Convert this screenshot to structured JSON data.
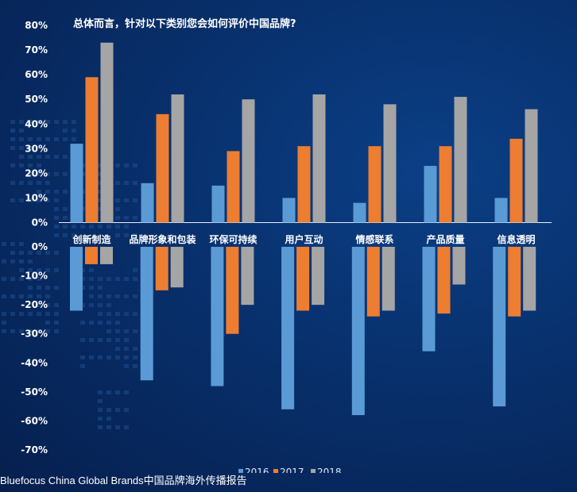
{
  "chart_data": {
    "type": "bar",
    "title": "总体而言，针对以下类别您会如何评价中国品牌?",
    "xlabel": "",
    "ylabel": "",
    "colors": {
      "2016": "#5b9bd5",
      "2017": "#ed7d31",
      "2018": "#a5a5a5"
    },
    "legend_position": "bottom",
    "grid": false,
    "categories": [
      "创新制造",
      "品牌形象和包装",
      "环保可持续",
      "用户互动",
      "情感联系",
      "产品质量",
      "信息透明"
    ],
    "positive": {
      "ylim": [
        0,
        80
      ],
      "ticks": [
        "80%",
        "70%",
        "60%",
        "50%",
        "40%",
        "30%",
        "20%",
        "10%",
        "0%"
      ],
      "series": [
        {
          "name": "2016",
          "values": [
            32,
            16,
            15,
            10,
            8,
            23,
            10
          ]
        },
        {
          "name": "2017",
          "values": [
            59,
            44,
            29,
            31,
            31,
            31,
            34
          ]
        },
        {
          "name": "2018",
          "values": [
            73,
            52,
            50,
            52,
            48,
            51,
            46
          ]
        }
      ]
    },
    "negative": {
      "ylim": [
        -70,
        0
      ],
      "ticks": [
        "0%",
        "-10%",
        "-20%",
        "-30%",
        "-40%",
        "-50%",
        "-60%",
        "-70%"
      ],
      "series": [
        {
          "name": "2016",
          "values": [
            -22,
            -46,
            -48,
            -56,
            -58,
            -36,
            -55
          ]
        },
        {
          "name": "2017",
          "values": [
            -6,
            -15,
            -30,
            -22,
            -24,
            -23,
            -24
          ]
        },
        {
          "name": "2018",
          "values": [
            -6,
            -14,
            -20,
            -20,
            -22,
            -13,
            -22
          ]
        }
      ]
    }
  },
  "legend": [
    "2016",
    "2017",
    "2018"
  ],
  "footer": "Bluefocus China Global Brands中国品牌海外传播报告"
}
